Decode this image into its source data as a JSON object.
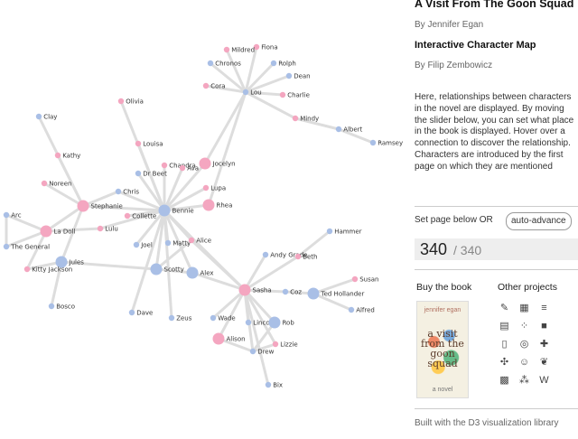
{
  "header": {
    "book_title": "A Visit From The Goon Squad",
    "author_line": "By Jennifer Egan",
    "subtitle": "Interactive Character Map",
    "creator_line": "By Filip Zembowicz"
  },
  "description": "Here, relationships between characters in the novel are displayed. By moving the slider below, you can set what place in the book is displayed. Hover over a connection to discover the relationship. Characters are introduced by the first page on which they are mentioned",
  "controls": {
    "set_label": "Set page below",
    "or_label": "OR",
    "auto_advance_label": "auto-advance",
    "current_page": "340",
    "separator": "/",
    "total_pages": "340"
  },
  "links": {
    "buy_book_label": "Buy the book",
    "other_projects_label": "Other projects"
  },
  "book_cover": {
    "author": "jennifer egan",
    "title": "a visit from the goon squad",
    "tagline": "a novel"
  },
  "footer": {
    "text": "Built with the D3 visualization library"
  },
  "colors": {
    "female": "#f4a6c0",
    "male": "#a9bfe6",
    "edge": "#dddddd",
    "counter_bg": "#eeeeee"
  },
  "graph": {
    "nodes": [
      {
        "id": "Fiona",
        "gender": "f"
      },
      {
        "id": "Mildred",
        "gender": "f"
      },
      {
        "id": "Rolph",
        "gender": "m"
      },
      {
        "id": "Chronos",
        "gender": "m"
      },
      {
        "id": "Dean",
        "gender": "m"
      },
      {
        "id": "Cora",
        "gender": "f"
      },
      {
        "id": "Lou",
        "gender": "m"
      },
      {
        "id": "Charlie",
        "gender": "f"
      },
      {
        "id": "Mindy",
        "gender": "f"
      },
      {
        "id": "Albert",
        "gender": "m"
      },
      {
        "id": "Ramsey",
        "gender": "m"
      },
      {
        "id": "Olivia",
        "gender": "f"
      },
      {
        "id": "Clay",
        "gender": "m"
      },
      {
        "id": "Louisa",
        "gender": "f"
      },
      {
        "id": "Kathy",
        "gender": "f"
      },
      {
        "id": "Chandra",
        "gender": "f"
      },
      {
        "id": "Jocelyn",
        "gender": "f"
      },
      {
        "id": "Ava",
        "gender": "f"
      },
      {
        "id": "Dr Beet",
        "gender": "m"
      },
      {
        "id": "Noreen",
        "gender": "f"
      },
      {
        "id": "Lupa",
        "gender": "f"
      },
      {
        "id": "Chris",
        "gender": "m"
      },
      {
        "id": "Stephanie",
        "gender": "f"
      },
      {
        "id": "Rhea",
        "gender": "f"
      },
      {
        "id": "Bennie",
        "gender": "m"
      },
      {
        "id": "Collette",
        "gender": "f"
      },
      {
        "id": "Arc",
        "gender": "m"
      },
      {
        "id": "La Doll",
        "gender": "f"
      },
      {
        "id": "Lulu",
        "gender": "f"
      },
      {
        "id": "Joel",
        "gender": "m"
      },
      {
        "id": "Matty",
        "gender": "m"
      },
      {
        "id": "Alice",
        "gender": "f"
      },
      {
        "id": "The General",
        "gender": "m"
      },
      {
        "id": "Hammer",
        "gender": "m"
      },
      {
        "id": "Jules",
        "gender": "m"
      },
      {
        "id": "Andy Grade",
        "gender": "m"
      },
      {
        "id": "Beth",
        "gender": "f"
      },
      {
        "id": "Kitty Jackson",
        "gender": "f"
      },
      {
        "id": "Scotty",
        "gender": "m"
      },
      {
        "id": "Alex",
        "gender": "m"
      },
      {
        "id": "Susan",
        "gender": "f"
      },
      {
        "id": "Sasha",
        "gender": "f"
      },
      {
        "id": "Coz",
        "gender": "m"
      },
      {
        "id": "Ted Hollander",
        "gender": "m"
      },
      {
        "id": "Bosco",
        "gender": "m"
      },
      {
        "id": "Alfred",
        "gender": "m"
      },
      {
        "id": "Dave",
        "gender": "m"
      },
      {
        "id": "Zeus",
        "gender": "m"
      },
      {
        "id": "Wade",
        "gender": "m"
      },
      {
        "id": "Lincoln",
        "gender": "m"
      },
      {
        "id": "Rob",
        "gender": "m"
      },
      {
        "id": "Alison",
        "gender": "f"
      },
      {
        "id": "Lizzie",
        "gender": "f"
      },
      {
        "id": "Drew",
        "gender": "m"
      },
      {
        "id": "Bix",
        "gender": "m"
      }
    ],
    "edges": [
      [
        "Lou",
        "Fiona"
      ],
      [
        "Lou",
        "Mildred"
      ],
      [
        "Lou",
        "Rolph"
      ],
      [
        "Lou",
        "Chronos"
      ],
      [
        "Lou",
        "Dean"
      ],
      [
        "Lou",
        "Cora"
      ],
      [
        "Lou",
        "Charlie"
      ],
      [
        "Lou",
        "Mindy"
      ],
      [
        "Mindy",
        "Albert"
      ],
      [
        "Albert",
        "Ramsey"
      ],
      [
        "Lou",
        "Jocelyn"
      ],
      [
        "Lou",
        "Rhea"
      ],
      [
        "Bennie",
        "Olivia"
      ],
      [
        "Bennie",
        "Louisa"
      ],
      [
        "Bennie",
        "Chandra"
      ],
      [
        "Bennie",
        "Jocelyn"
      ],
      [
        "Bennie",
        "Ava"
      ],
      [
        "Bennie",
        "Dr Beet"
      ],
      [
        "Bennie",
        "Lupa"
      ],
      [
        "Bennie",
        "Chris"
      ],
      [
        "Bennie",
        "Stephanie"
      ],
      [
        "Bennie",
        "Rhea"
      ],
      [
        "Bennie",
        "Collette"
      ],
      [
        "Bennie",
        "Lulu"
      ],
      [
        "Bennie",
        "Joel"
      ],
      [
        "Bennie",
        "Matty"
      ],
      [
        "Bennie",
        "Alice"
      ],
      [
        "Bennie",
        "Scotty"
      ],
      [
        "Bennie",
        "Alex"
      ],
      [
        "Bennie",
        "Sasha"
      ],
      [
        "Bennie",
        "Zeus"
      ],
      [
        "Bennie",
        "Dave"
      ],
      [
        "Stephanie",
        "Clay"
      ],
      [
        "Stephanie",
        "Kathy"
      ],
      [
        "Stephanie",
        "Noreen"
      ],
      [
        "Stephanie",
        "La Doll"
      ],
      [
        "Stephanie",
        "Chris"
      ],
      [
        "Stephanie",
        "Jules"
      ],
      [
        "La Doll",
        "Arc"
      ],
      [
        "La Doll",
        "The General"
      ],
      [
        "La Doll",
        "Kitty Jackson"
      ],
      [
        "La Doll",
        "Lulu"
      ],
      [
        "Arc",
        "The General"
      ],
      [
        "Jules",
        "Kitty Jackson"
      ],
      [
        "Jules",
        "Bosco"
      ],
      [
        "Jules",
        "Scotty"
      ],
      [
        "Scotty",
        "Alex"
      ],
      [
        "Scotty",
        "Alice"
      ],
      [
        "Alex",
        "Sasha"
      ],
      [
        "Sasha",
        "Andy Grade"
      ],
      [
        "Sasha",
        "Beth"
      ],
      [
        "Beth",
        "Hammer"
      ],
      [
        "Sasha",
        "Coz"
      ],
      [
        "Sasha",
        "Wade"
      ],
      [
        "Sasha",
        "Lincoln"
      ],
      [
        "Sasha",
        "Rob"
      ],
      [
        "Sasha",
        "Alison"
      ],
      [
        "Sasha",
        "Drew"
      ],
      [
        "Sasha",
        "Bix"
      ],
      [
        "Sasha",
        "Lizzie"
      ],
      [
        "Sasha",
        "Alice"
      ],
      [
        "Coz",
        "Ted Hollander"
      ],
      [
        "Ted Hollander",
        "Susan"
      ],
      [
        "Ted Hollander",
        "Alfred"
      ],
      [
        "Drew",
        "Alison"
      ],
      [
        "Drew",
        "Rob"
      ],
      [
        "Drew",
        "Lizzie"
      ]
    ]
  }
}
